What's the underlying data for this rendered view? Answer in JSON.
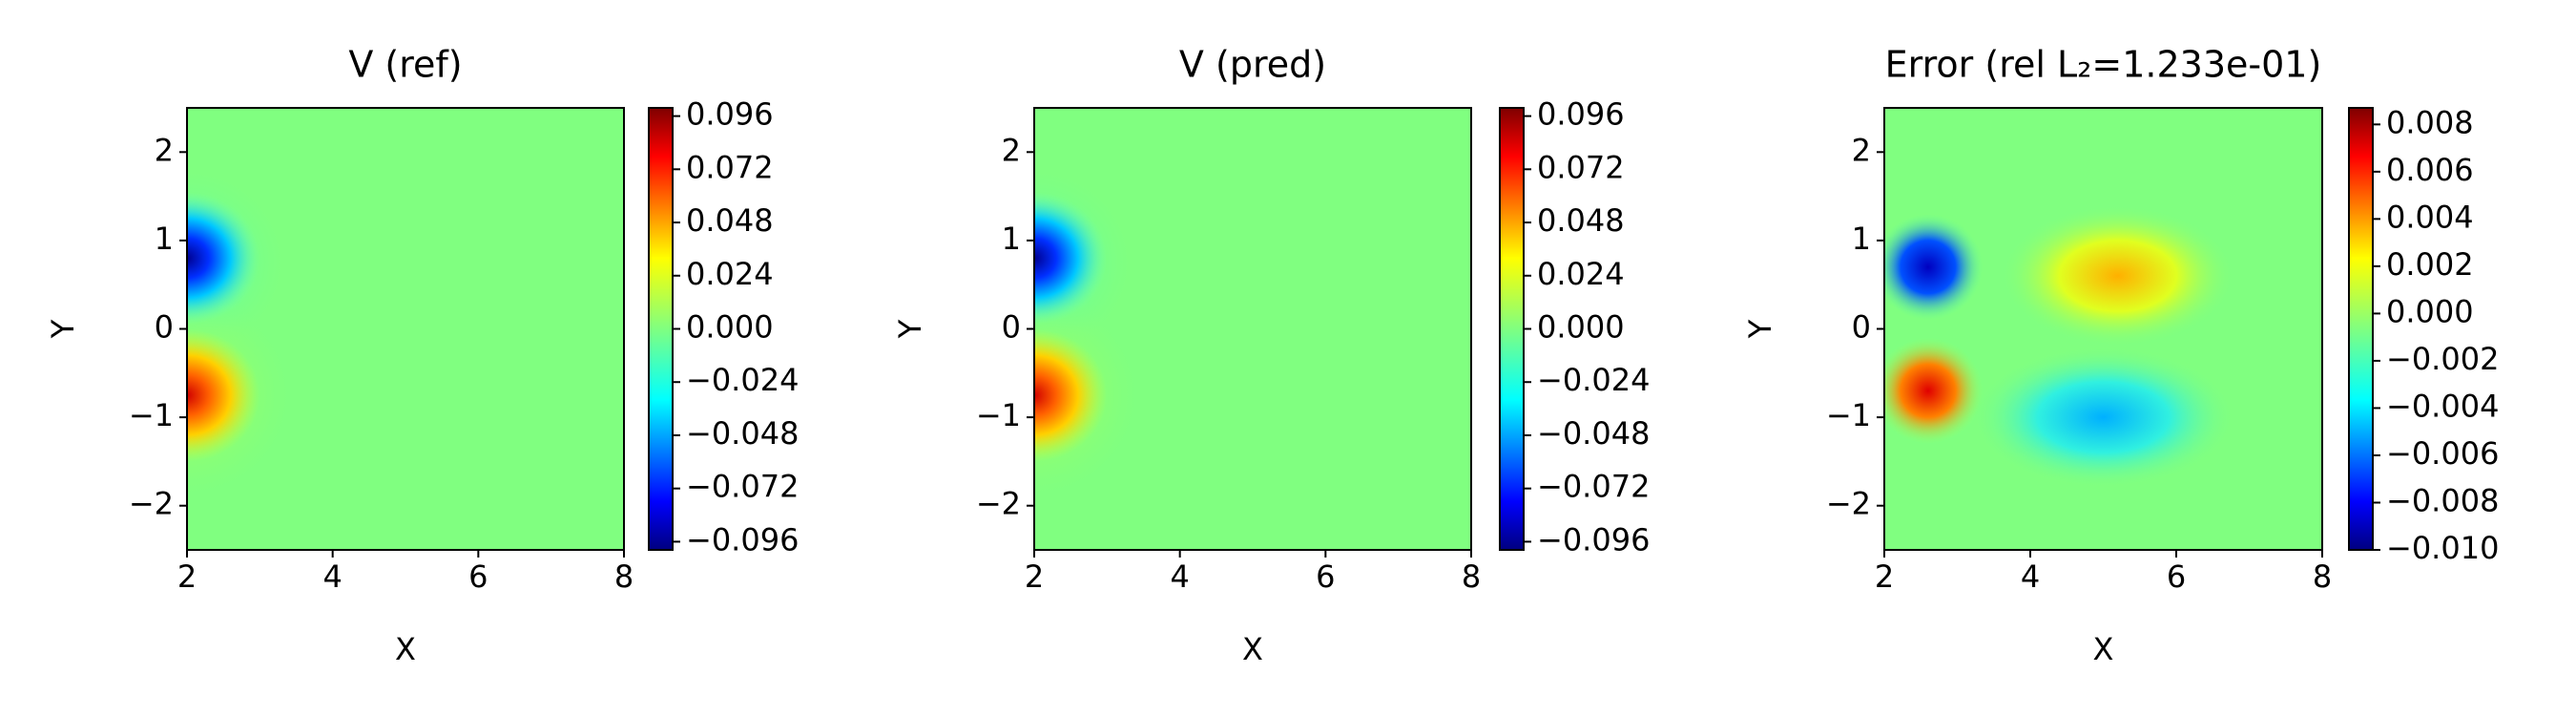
{
  "chart_data": [
    {
      "type": "contour",
      "title": "V (ref)",
      "xlabel": "X",
      "ylabel": "Y",
      "xlim": [
        2,
        8
      ],
      "ylim": [
        -2.5,
        2.5
      ],
      "xticks": [
        2,
        4,
        6,
        8
      ],
      "yticks": [
        {
          "value": -2,
          "label": "−2"
        },
        {
          "value": -1,
          "label": "−1"
        },
        {
          "value": 0,
          "label": "0"
        },
        1,
        2
      ],
      "colormap": "jet",
      "clim": [
        -0.0997,
        0.0997
      ],
      "cticks": [
        {
          "value": -0.096,
          "label": "−0.096"
        },
        {
          "value": -0.072,
          "label": "−0.072"
        },
        {
          "value": -0.048,
          "label": "−0.048"
        },
        {
          "value": -0.024,
          "label": "−0.024"
        },
        {
          "value": 0,
          "label": "0.000"
        },
        0.024,
        0.048,
        0.072,
        0.096
      ]
    },
    {
      "type": "contour",
      "title": "V (pred)",
      "xlabel": "X",
      "ylabel": "Y",
      "xlim": [
        2,
        8
      ],
      "ylim": [
        -2.5,
        2.5
      ],
      "xticks": [
        2,
        4,
        6,
        8
      ],
      "yticks": [
        {
          "value": -2,
          "label": "−2"
        },
        {
          "value": -1,
          "label": "−1"
        },
        {
          "value": 0,
          "label": "0"
        },
        1,
        2
      ],
      "colormap": "jet",
      "clim": [
        -0.0997,
        0.0997
      ],
      "cticks": [
        {
          "value": -0.096,
          "label": "−0.096"
        },
        {
          "value": -0.072,
          "label": "−0.072"
        },
        {
          "value": -0.048,
          "label": "−0.048"
        },
        {
          "value": -0.024,
          "label": "−0.024"
        },
        {
          "value": 0,
          "label": "0.000"
        },
        0.024,
        0.048,
        0.072,
        0.096
      ]
    },
    {
      "type": "contour",
      "title": "Error (rel L₂=1.233e-01)",
      "xlabel": "X",
      "ylabel": "Y",
      "xlim": [
        2,
        8
      ],
      "ylim": [
        -2.5,
        2.5
      ],
      "xticks": [
        2,
        4,
        6,
        8
      ],
      "yticks": [
        {
          "value": -2,
          "label": "−2"
        },
        {
          "value": -1,
          "label": "−1"
        },
        {
          "value": 0,
          "label": "0"
        },
        1,
        2
      ],
      "colormap": "jet",
      "clim": [
        -0.01,
        0.0087
      ],
      "cticks": [
        {
          "value": -0.01,
          "label": "−0.010"
        },
        {
          "value": -0.008,
          "label": "−0.008"
        },
        {
          "value": -0.006,
          "label": "−0.006"
        },
        {
          "value": -0.004,
          "label": "−0.004"
        },
        {
          "value": -0.002,
          "label": "−0.002"
        },
        {
          "value": 0,
          "label": "0.000"
        },
        0.002,
        0.004,
        0.006,
        0.008
      ]
    }
  ]
}
